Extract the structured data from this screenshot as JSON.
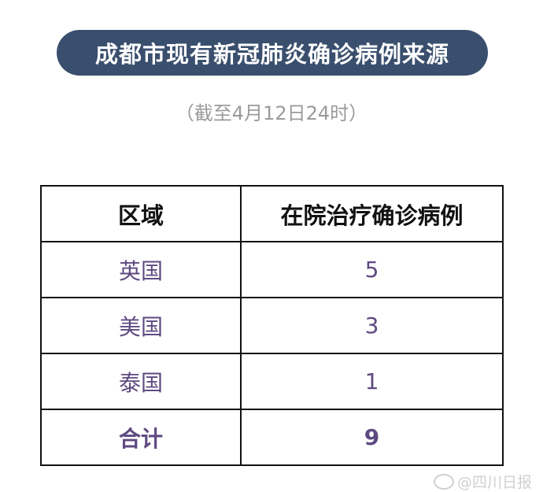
{
  "title": "成都市现有新冠肺炎确诊病例来源",
  "subtitle": "（截至4月12日24时）",
  "table": {
    "headers": [
      "区域",
      "在院治疗确诊病例"
    ],
    "rows": [
      {
        "region": "英国",
        "count": "5"
      },
      {
        "region": "美国",
        "count": "3"
      },
      {
        "region": "泰国",
        "count": "1"
      }
    ],
    "total": {
      "region": "合计",
      "count": "9"
    }
  },
  "watermark": {
    "icon": "weibo-logo-icon",
    "text": "@四川日报"
  },
  "colors": {
    "title_bg": "#3a4f6e",
    "value_text": "#5e4a80",
    "subtitle": "#9a9a9a"
  }
}
